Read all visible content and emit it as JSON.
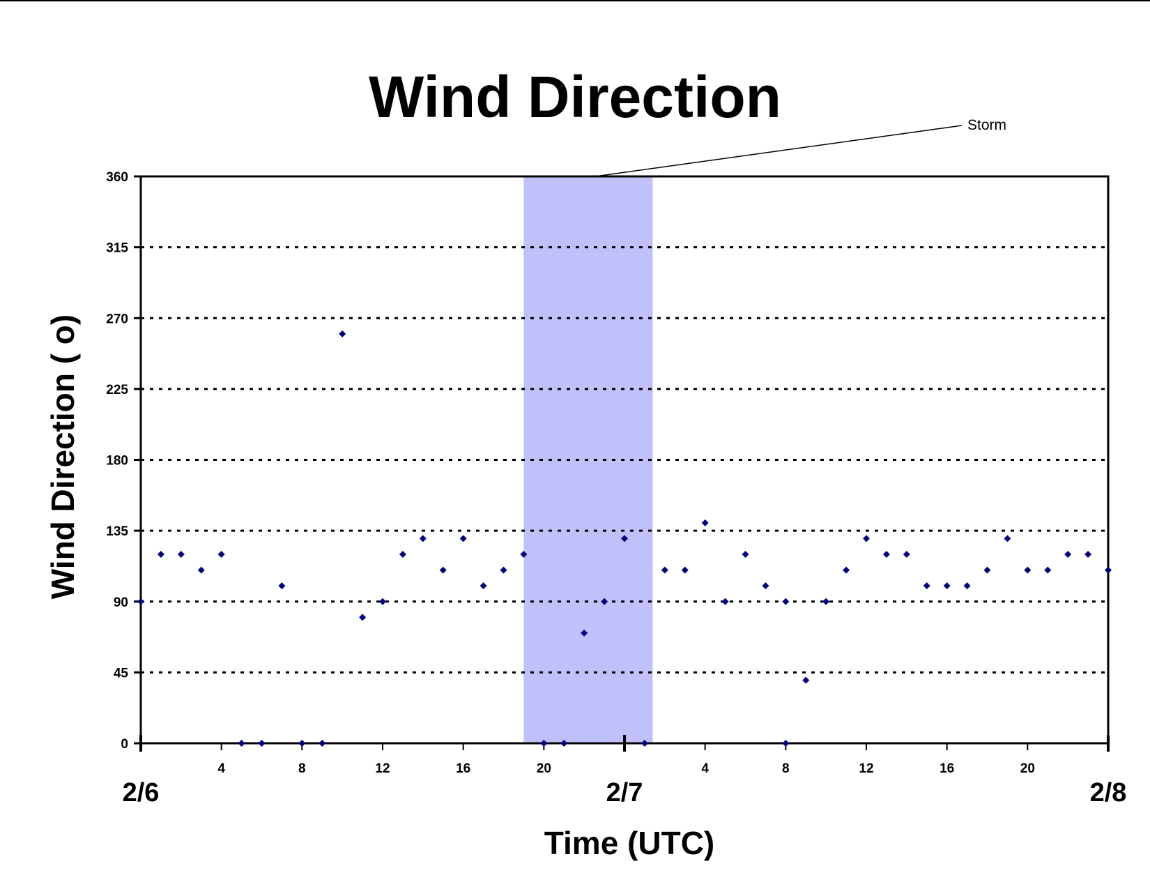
{
  "chart_data": {
    "type": "scatter",
    "title": "Wind Direction",
    "xlabel": "Time (UTC)",
    "ylabel": "Wind Direction ( o)",
    "ylim": [
      0,
      360
    ],
    "y_ticks": [
      0,
      45,
      90,
      135,
      180,
      225,
      270,
      315,
      360
    ],
    "xlim_hours": [
      0,
      48
    ],
    "x_ticks": [
      {
        "hour": 4,
        "label": "4"
      },
      {
        "hour": 8,
        "label": "8"
      },
      {
        "hour": 12,
        "label": "12"
      },
      {
        "hour": 16,
        "label": "16"
      },
      {
        "hour": 20,
        "label": "20"
      },
      {
        "hour": 28,
        "label": "4"
      },
      {
        "hour": 32,
        "label": "8"
      },
      {
        "hour": 36,
        "label": "12"
      },
      {
        "hour": 40,
        "label": "16"
      },
      {
        "hour": 44,
        "label": "20"
      }
    ],
    "day_labels": [
      {
        "hour": 0,
        "label": "2/6"
      },
      {
        "hour": 24,
        "label": "2/7"
      },
      {
        "hour": 48,
        "label": "2/8"
      }
    ],
    "grid": "horizontal dotted",
    "marker_color": "#000080",
    "shade_color": "#c0c0fa",
    "annotation": {
      "label": "Storm",
      "span_hours": [
        19,
        25.4
      ]
    },
    "series": [
      {
        "points": [
          [
            0,
            90
          ],
          [
            1,
            120
          ],
          [
            2,
            120
          ],
          [
            3,
            110
          ],
          [
            4,
            120
          ],
          [
            5,
            0
          ],
          [
            6,
            0
          ],
          [
            7,
            100
          ],
          [
            8,
            0
          ],
          [
            9,
            0
          ],
          [
            10,
            260
          ],
          [
            11,
            80
          ],
          [
            12,
            90
          ],
          [
            13,
            120
          ],
          [
            14,
            130
          ],
          [
            15,
            110
          ],
          [
            16,
            130
          ],
          [
            17,
            100
          ],
          [
            18,
            110
          ],
          [
            19,
            120
          ],
          [
            20,
            0
          ],
          [
            21,
            0
          ],
          [
            22,
            70
          ],
          [
            23,
            90
          ],
          [
            24,
            130
          ],
          [
            25,
            0
          ],
          [
            26,
            110
          ],
          [
            27,
            110
          ],
          [
            28,
            140
          ],
          [
            29,
            90
          ],
          [
            30,
            120
          ],
          [
            31,
            100
          ],
          [
            32,
            90
          ],
          [
            32,
            0
          ],
          [
            33,
            40
          ],
          [
            34,
            90
          ],
          [
            35,
            110
          ],
          [
            36,
            130
          ],
          [
            37,
            120
          ],
          [
            38,
            120
          ],
          [
            39,
            100
          ],
          [
            40,
            100
          ],
          [
            41,
            100
          ],
          [
            42,
            110
          ],
          [
            43,
            130
          ],
          [
            44,
            110
          ],
          [
            45,
            110
          ],
          [
            46,
            120
          ],
          [
            47,
            120
          ],
          [
            48,
            110
          ]
        ]
      }
    ]
  }
}
